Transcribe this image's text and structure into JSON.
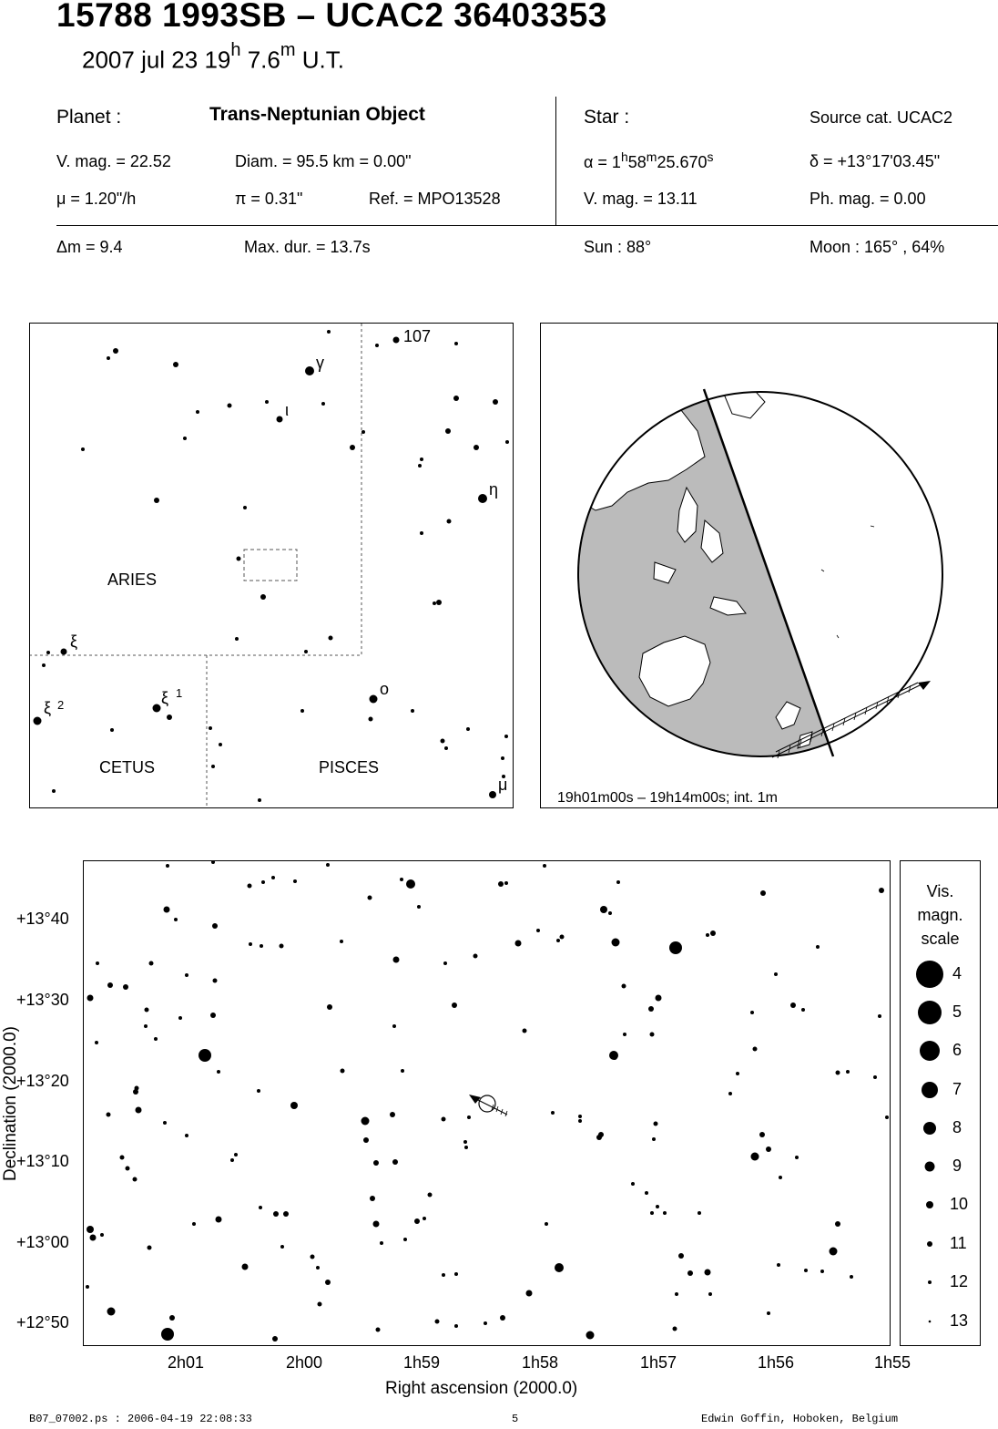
{
  "header": {
    "title": "15788 1993SB  –  UCAC2 36403353",
    "date_text": "2007 jul 23  19",
    "h_sup": "h",
    "minutes_text": " 7.6",
    "m_sup": "m",
    "ut_text": " U.T."
  },
  "planet": {
    "label": "Planet :",
    "type": "Trans-Neptunian Object",
    "vmag": "V. mag. = 22.52",
    "diam": "Diam. = 95.5 km = 0.00\"",
    "mu": "μ =  1.20\"/h",
    "pi": "π =  0.31\"",
    "ref": "Ref. = MPO13528"
  },
  "star": {
    "label": "Star :",
    "source": "Source cat.  UCAC2",
    "alpha_prefix": "α =  1",
    "alpha_h": "h",
    "alpha_mid": "58",
    "alpha_m": "m",
    "alpha_end": "25.670",
    "alpha_s": "s",
    "delta": "δ = +13°17'03.45\"",
    "vmag": "V. mag. = 13.11",
    "phmag": "Ph. mag. =  0.00"
  },
  "event": {
    "dm": "Δm = 9.4",
    "maxdur": "Max. dur. = 13.7s",
    "sun": "Sun :  88°",
    "moon": "Moon : 165° , 64%"
  },
  "finder_chart": {
    "labels": {
      "aries": "ARIES",
      "cetus": "CETUS",
      "pisces": "PISCES",
      "n107": "107",
      "gamma": "γ",
      "iota": "ι",
      "eta": "η",
      "xi": "ξ",
      "xi1": "ξ",
      "xi1_num": "1",
      "xi2": "ξ",
      "xi2_num": "2",
      "omicron": "ο",
      "mu": "μ"
    }
  },
  "globe": {
    "caption": "19h01m00s – 19h14m00s; int.  1m"
  },
  "star_chart": {
    "y_axis_label": "Declination (2000.0)",
    "x_axis_label": "Right ascension (2000.0)",
    "y_ticks": [
      "+13°40",
      "+13°30",
      "+13°20",
      "+13°10",
      "+13°00",
      "+12°50"
    ],
    "x_ticks": [
      "2h01",
      "2h00",
      "1h59",
      "1h58",
      "1h57",
      "1h56",
      "1h55"
    ]
  },
  "mag_scale": {
    "title_lines": [
      "Vis.",
      "magn.",
      "scale"
    ],
    "values": [
      "4",
      "5",
      "6",
      "7",
      "8",
      "9",
      "10",
      "11",
      "12",
      "13"
    ]
  },
  "footer": {
    "left": "B07_07002.ps : 2006-04-19 22:08:33",
    "center": "5",
    "right": "Edwin Goffin, Hoboken, Belgium"
  }
}
